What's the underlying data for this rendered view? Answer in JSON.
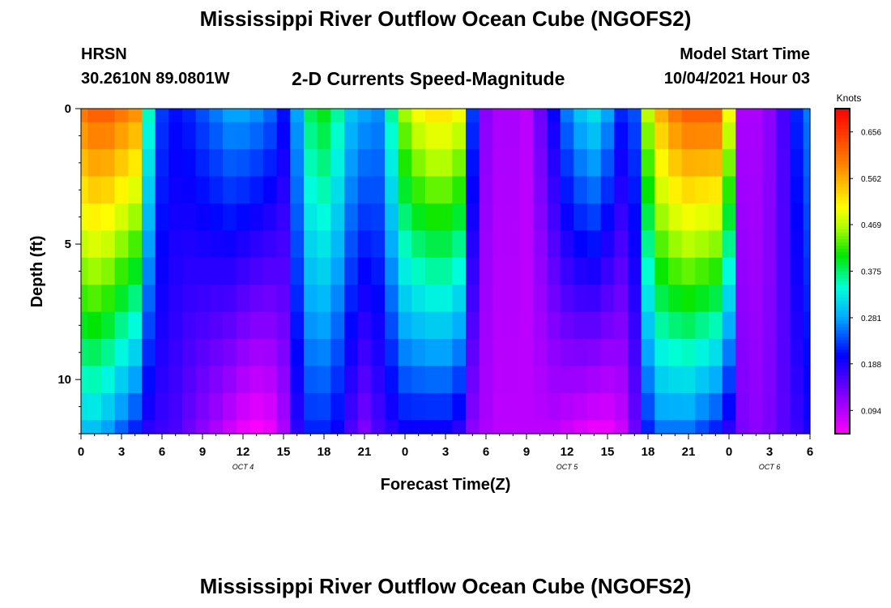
{
  "header": {
    "title": "Mississippi River Outflow Ocean Cube (NGOFS2)",
    "station_id": "HRSN",
    "station_coords": "30.2610N  89.0801W",
    "subtitle": "2-D Currents Speed-Magnitude",
    "model_start_label": "Model Start Time",
    "model_start_value": "10/04/2021 Hour 03"
  },
  "footer": {
    "title": "Mississippi River Outflow Ocean Cube (NGOFS2)"
  },
  "chart_data": {
    "type": "heatmap",
    "title": "2-D Currents Speed-Magnitude",
    "xlabel": "Forecast Time(Z)",
    "ylabel": "Depth (ft)",
    "units_label": "Knots",
    "xlim": [
      0,
      54
    ],
    "ylim": [
      0,
      12
    ],
    "x_ticks": [
      0,
      3,
      6,
      9,
      12,
      15,
      18,
      21,
      24,
      27,
      30,
      33,
      36,
      39,
      42,
      45,
      48,
      51,
      54
    ],
    "x_tick_labels": [
      "0",
      "3",
      "6",
      "9",
      "12",
      "15",
      "18",
      "21",
      "0",
      "3",
      "6",
      "9",
      "12",
      "15",
      "18",
      "21",
      "0",
      "3",
      "6"
    ],
    "y_ticks": [
      0,
      5,
      10
    ],
    "y_tick_labels": [
      "0",
      "5",
      "10"
    ],
    "date_labels": [
      {
        "text": "OCT 4",
        "x": 12
      },
      {
        "text": "OCT 5",
        "x": 36
      },
      {
        "text": "OCT 6",
        "x": 51
      }
    ],
    "colorbar": {
      "min": 0.047,
      "max": 0.703,
      "tick_values": [
        0.094,
        0.188,
        0.281,
        0.375,
        0.469,
        0.562,
        0.656
      ],
      "tick_labels": [
        "0.094",
        "0.188",
        "0.281",
        "0.375",
        "0.469",
        "0.562",
        "0.656"
      ]
    },
    "depth_levels": [
      0,
      1,
      2,
      3,
      4,
      5,
      6,
      7,
      8,
      9,
      10,
      11,
      12
    ],
    "surface_speed_by_hour": [
      0.6,
      0.62,
      0.62,
      0.6,
      0.58,
      0.35,
      0.23,
      0.21,
      0.22,
      0.24,
      0.26,
      0.28,
      0.28,
      0.27,
      0.25,
      0.21,
      0.28,
      0.38,
      0.4,
      0.36,
      0.3,
      0.28,
      0.27,
      0.36,
      0.46,
      0.5,
      0.52,
      0.52,
      0.5,
      0.23,
      0.12,
      0.1,
      0.1,
      0.09,
      0.14,
      0.2,
      0.26,
      0.3,
      0.32,
      0.28,
      0.22,
      0.24,
      0.47,
      0.56,
      0.6,
      0.62,
      0.62,
      0.62,
      0.5,
      0.1,
      0.1,
      0.12,
      0.16,
      0.22,
      0.26
    ],
    "bottom_speed_by_hour": [
      0.3,
      0.3,
      0.28,
      0.25,
      0.22,
      0.18,
      0.17,
      0.16,
      0.14,
      0.12,
      0.1,
      0.08,
      0.06,
      0.05,
      0.06,
      0.1,
      0.18,
      0.22,
      0.22,
      0.2,
      0.16,
      0.13,
      0.16,
      0.18,
      0.2,
      0.2,
      0.2,
      0.2,
      0.18,
      0.12,
      0.1,
      0.09,
      0.09,
      0.09,
      0.09,
      0.09,
      0.08,
      0.07,
      0.06,
      0.06,
      0.08,
      0.14,
      0.22,
      0.26,
      0.26,
      0.26,
      0.24,
      0.22,
      0.18,
      0.13,
      0.12,
      0.13,
      0.15,
      0.17,
      0.19
    ]
  }
}
